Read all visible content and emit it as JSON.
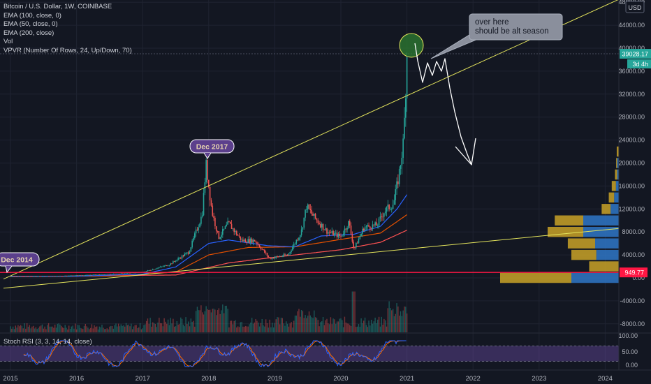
{
  "legend": {
    "title": "Bitcoin / U.S. Dollar, 1W, COINBASE",
    "indicators": [
      "EMA (100, close, 0)",
      "EMA (50, close, 0)",
      "EMA (200, close)",
      "Vol",
      "VPVR (Number Of Rows, 24, Up/Down, 70)"
    ],
    "stoch_label": "Stoch RSI (3, 3, 14, 14, close)"
  },
  "annotations": {
    "callout_line1": "over here",
    "callout_line2": "should be alt season",
    "dec2017": "Dec 2017",
    "dec2014": "Dec 2014"
  },
  "price_scale": {
    "currency": "USD",
    "current_price": "39028.17",
    "countdown": "3d 4h",
    "support_price": "949.77",
    "ticks": [
      "48000.00",
      "44000.00",
      "40000.00",
      "36000.00",
      "32000.00",
      "28000.00",
      "24000.00",
      "20000.00",
      "16000.00",
      "12000.00",
      "8000.00",
      "4000.00",
      "0.00",
      "-4000.00",
      "-8000.00"
    ],
    "stoch_ticks": [
      "100.00",
      "50.00",
      "0.00"
    ]
  },
  "time_axis": [
    "2015",
    "2016",
    "2017",
    "2018",
    "2019",
    "2020",
    "2021",
    "2022",
    "2023",
    "2024"
  ],
  "colors": {
    "background": "#131722",
    "up": "#26a69a",
    "down": "#ef5350",
    "ema50": "#2962ff",
    "ema100": "#e65100",
    "ema200": "#ff5252",
    "trendline": "#e4e45c",
    "support": "#ff1744",
    "stoch_k": "#2962ff",
    "stoch_d": "#ff6d00",
    "stoch_band": "#7e57c2"
  },
  "chart_data": {
    "type": "candlestick",
    "symbol": "BTCUSD",
    "interval": "1W",
    "exchange": "COINBASE",
    "y_range": [
      -9000,
      48000
    ],
    "x_range": [
      2015.0,
      2024.2
    ],
    "price_path": [
      {
        "t": 2015.0,
        "price": 300
      },
      {
        "t": 2015.5,
        "price": 260
      },
      {
        "t": 2016.0,
        "price": 430
      },
      {
        "t": 2016.5,
        "price": 650
      },
      {
        "t": 2017.0,
        "price": 1000
      },
      {
        "t": 2017.4,
        "price": 2300
      },
      {
        "t": 2017.7,
        "price": 4500
      },
      {
        "t": 2017.9,
        "price": 11000
      },
      {
        "t": 2017.96,
        "price": 19700
      },
      {
        "t": 2018.05,
        "price": 11500
      },
      {
        "t": 2018.15,
        "price": 7000
      },
      {
        "t": 2018.3,
        "price": 9500
      },
      {
        "t": 2018.5,
        "price": 6500
      },
      {
        "t": 2018.7,
        "price": 6500
      },
      {
        "t": 2018.92,
        "price": 3400
      },
      {
        "t": 2019.2,
        "price": 4000
      },
      {
        "t": 2019.4,
        "price": 8000
      },
      {
        "t": 2019.48,
        "price": 12500
      },
      {
        "t": 2019.6,
        "price": 10500
      },
      {
        "t": 2019.8,
        "price": 8000
      },
      {
        "t": 2020.0,
        "price": 7200
      },
      {
        "t": 2020.12,
        "price": 9700
      },
      {
        "t": 2020.2,
        "price": 5000
      },
      {
        "t": 2020.35,
        "price": 8800
      },
      {
        "t": 2020.55,
        "price": 9200
      },
      {
        "t": 2020.65,
        "price": 11500
      },
      {
        "t": 2020.8,
        "price": 13000
      },
      {
        "t": 2020.88,
        "price": 18000
      },
      {
        "t": 2020.95,
        "price": 24000
      },
      {
        "t": 2021.0,
        "price": 39028
      }
    ],
    "ema50": [
      {
        "t": 2015.0,
        "price": 250
      },
      {
        "t": 2016.0,
        "price": 300
      },
      {
        "t": 2017.0,
        "price": 650
      },
      {
        "t": 2017.5,
        "price": 1900
      },
      {
        "t": 2018.0,
        "price": 6000
      },
      {
        "t": 2018.3,
        "price": 6600
      },
      {
        "t": 2018.9,
        "price": 5600
      },
      {
        "t": 2019.3,
        "price": 5400
      },
      {
        "t": 2019.7,
        "price": 7300
      },
      {
        "t": 2020.2,
        "price": 7600
      },
      {
        "t": 2020.6,
        "price": 9000
      },
      {
        "t": 2020.85,
        "price": 12000
      },
      {
        "t": 2021.0,
        "price": 14500
      }
    ],
    "ema100": [
      {
        "t": 2015.0,
        "price": 250
      },
      {
        "t": 2016.5,
        "price": 320
      },
      {
        "t": 2017.5,
        "price": 1000
      },
      {
        "t": 2018.0,
        "price": 4000
      },
      {
        "t": 2018.6,
        "price": 5300
      },
      {
        "t": 2019.3,
        "price": 5400
      },
      {
        "t": 2020.0,
        "price": 6700
      },
      {
        "t": 2020.6,
        "price": 7800
      },
      {
        "t": 2021.0,
        "price": 11000
      }
    ],
    "ema200": [
      {
        "t": 2015.0,
        "price": 200
      },
      {
        "t": 2017.5,
        "price": 500
      },
      {
        "t": 2018.3,
        "price": 2600
      },
      {
        "t": 2019.0,
        "price": 3600
      },
      {
        "t": 2020.0,
        "price": 4900
      },
      {
        "t": 2020.6,
        "price": 6200
      },
      {
        "t": 2021.0,
        "price": 8300
      }
    ],
    "vpvr": [
      {
        "price": 22000,
        "up": 0.015,
        "down": 0.003
      },
      {
        "price": 20000,
        "up": 0.008,
        "down": 0.015
      },
      {
        "price": 18000,
        "up": 0.018,
        "down": 0.015
      },
      {
        "price": 16000,
        "up": 0.035,
        "down": 0.025
      },
      {
        "price": 14000,
        "up": 0.045,
        "down": 0.04
      },
      {
        "price": 12000,
        "up": 0.075,
        "down": 0.07
      },
      {
        "price": 10000,
        "up": 0.24,
        "down": 0.3
      },
      {
        "price": 8000,
        "up": 0.3,
        "down": 0.3
      },
      {
        "price": 6000,
        "up": 0.23,
        "down": 0.2
      },
      {
        "price": 4000,
        "up": 0.21,
        "down": 0.19
      },
      {
        "price": 2000,
        "up": 0.25,
        "down": 0.0
      },
      {
        "price": 0,
        "up": 0.6,
        "down": 0.4
      }
    ],
    "stoch_rsi_range": [
      0,
      100
    ]
  }
}
